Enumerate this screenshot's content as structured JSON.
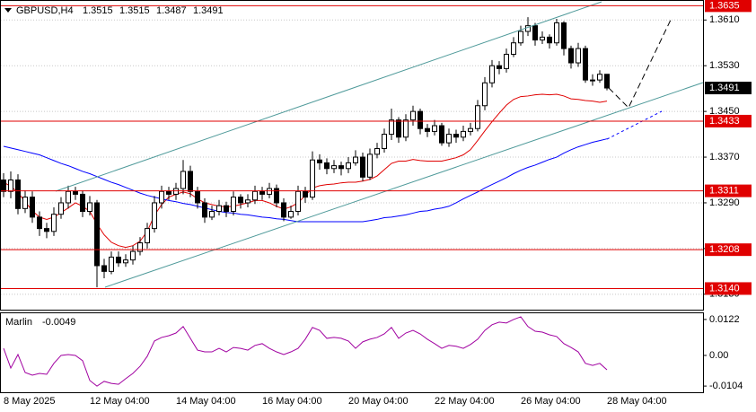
{
  "chart_data": [
    {
      "type": "candlestick",
      "symbol": "GBPUSD,H4",
      "header_ohlc": [
        1.3515,
        1.3515,
        1.3487,
        1.3491
      ],
      "categories": [
        "8 May 2025",
        null,
        null,
        null,
        null,
        null,
        null,
        null,
        null,
        null,
        null,
        null,
        "12 May 04:00",
        null,
        null,
        null,
        null,
        null,
        null,
        null,
        null,
        null,
        null,
        null,
        "14 May 04:00",
        null,
        null,
        null,
        null,
        null,
        null,
        null,
        null,
        null,
        null,
        null,
        "16 May 04:00",
        null,
        null,
        null,
        null,
        null,
        null,
        null,
        null,
        null,
        null,
        null,
        "20 May 04:00",
        null,
        null,
        null,
        null,
        null,
        null,
        null,
        null,
        null,
        null,
        null,
        "22 May 04:00",
        null,
        null,
        null,
        null,
        null,
        null,
        null,
        null,
        null,
        null,
        null,
        "26 May 04:00",
        null,
        null,
        null,
        null,
        null,
        null,
        null,
        null,
        null,
        null,
        null,
        "28 May 04:00"
      ],
      "open": [
        1.333,
        1.331,
        1.333,
        1.328,
        1.33,
        1.3265,
        1.3245,
        1.324,
        1.327,
        1.329,
        1.331,
        1.3305,
        1.3275,
        1.329,
        1.318,
        1.317,
        1.3195,
        1.3185,
        1.319,
        1.3205,
        1.322,
        1.3245,
        1.329,
        1.331,
        1.3305,
        1.3315,
        1.3345,
        1.331,
        1.329,
        1.3265,
        1.3275,
        1.3285,
        1.3275,
        1.33,
        1.329,
        1.3295,
        1.331,
        1.3305,
        1.3315,
        1.329,
        1.3265,
        1.3275,
        1.331,
        1.33,
        1.3365,
        1.336,
        1.335,
        1.3355,
        1.335,
        1.336,
        1.337,
        1.3335,
        1.3375,
        1.3385,
        1.341,
        1.3435,
        1.3405,
        1.3435,
        1.345,
        1.342,
        1.3415,
        1.3425,
        1.3395,
        1.341,
        1.3405,
        1.3415,
        1.342,
        1.346,
        1.35,
        1.353,
        1.3525,
        1.355,
        1.357,
        1.359,
        1.36,
        1.3575,
        1.358,
        1.357,
        1.3605,
        1.356,
        1.3535,
        1.356,
        1.3505,
        1.3505,
        1.3515
      ],
      "high": [
        1.3342,
        1.3345,
        1.334,
        1.3312,
        1.331,
        1.3275,
        1.3255,
        1.3282,
        1.33,
        1.332,
        1.3318,
        1.3312,
        1.3302,
        1.3295,
        1.3192,
        1.3205,
        1.3205,
        1.32,
        1.3215,
        1.323,
        1.3255,
        1.3302,
        1.332,
        1.3318,
        1.3325,
        1.3365,
        1.3355,
        1.3318,
        1.3298,
        1.3285,
        1.3295,
        1.3292,
        1.331,
        1.3305,
        1.3305,
        1.332,
        1.3318,
        1.3325,
        1.3322,
        1.3298,
        1.3285,
        1.332,
        1.3318,
        1.338,
        1.3375,
        1.3368,
        1.3365,
        1.3362,
        1.337,
        1.3382,
        1.3378,
        1.3385,
        1.3395,
        1.342,
        1.3455,
        1.344,
        1.3445,
        1.346,
        1.3455,
        1.3428,
        1.3435,
        1.343,
        1.342,
        1.3418,
        1.3425,
        1.343,
        1.347,
        1.351,
        1.354,
        1.3538,
        1.356,
        1.358,
        1.36,
        1.3615,
        1.3605,
        1.359,
        1.3585,
        1.3612,
        1.3608,
        1.3565,
        1.357,
        1.3565,
        1.3515,
        1.3522,
        1.3515
      ],
      "low": [
        1.33,
        1.3298,
        1.327,
        1.3272,
        1.3255,
        1.3232,
        1.3228,
        1.3232,
        1.3262,
        1.328,
        1.3295,
        1.3265,
        1.3268,
        1.3142,
        1.3158,
        1.3165,
        1.3178,
        1.3178,
        1.3182,
        1.3198,
        1.321,
        1.3238,
        1.328,
        1.3295,
        1.3295,
        1.3305,
        1.33,
        1.328,
        1.3255,
        1.326,
        1.3268,
        1.3265,
        1.3268,
        1.328,
        1.3282,
        1.3288,
        1.3295,
        1.3298,
        1.3282,
        1.3258,
        1.3262,
        1.3268,
        1.329,
        1.3295,
        1.3348,
        1.334,
        1.3342,
        1.3338,
        1.3342,
        1.3355,
        1.3328,
        1.333,
        1.3368,
        1.3378,
        1.34,
        1.3395,
        1.3398,
        1.3425,
        1.341,
        1.3405,
        1.3408,
        1.339,
        1.3388,
        1.3395,
        1.3398,
        1.3408,
        1.3415,
        1.3452,
        1.3492,
        1.3515,
        1.3518,
        1.3545,
        1.3565,
        1.3582,
        1.3565,
        1.3568,
        1.356,
        1.3565,
        1.3548,
        1.3525,
        1.3528,
        1.35,
        1.3495,
        1.35,
        1.3487
      ],
      "close": [
        1.331,
        1.333,
        1.328,
        1.33,
        1.3265,
        1.3245,
        1.324,
        1.327,
        1.329,
        1.331,
        1.3305,
        1.3275,
        1.329,
        1.318,
        1.317,
        1.3195,
        1.3185,
        1.319,
        1.3205,
        1.322,
        1.3245,
        1.329,
        1.331,
        1.3305,
        1.3315,
        1.3345,
        1.331,
        1.329,
        1.3265,
        1.3275,
        1.3285,
        1.3275,
        1.33,
        1.329,
        1.3295,
        1.331,
        1.3305,
        1.3315,
        1.329,
        1.3265,
        1.3275,
        1.331,
        1.33,
        1.3365,
        1.336,
        1.335,
        1.3355,
        1.335,
        1.336,
        1.337,
        1.3335,
        1.3375,
        1.3385,
        1.341,
        1.3435,
        1.3405,
        1.3435,
        1.345,
        1.342,
        1.3415,
        1.3425,
        1.3395,
        1.341,
        1.3405,
        1.3415,
        1.342,
        1.346,
        1.35,
        1.353,
        1.3525,
        1.355,
        1.357,
        1.359,
        1.36,
        1.3575,
        1.358,
        1.357,
        1.3605,
        1.356,
        1.3535,
        1.356,
        1.3505,
        1.3505,
        1.3515,
        1.3491
      ],
      "moving_averages": [
        {
          "color": "#e00000",
          "values": [
            1.3326,
            1.3319,
            1.3308,
            1.3292,
            1.3276,
            1.3265,
            1.3261,
            1.3265,
            1.3273,
            1.3281,
            1.329,
            1.3284,
            1.3275,
            1.3253,
            1.3234,
            1.3221,
            1.3215,
            1.3212,
            1.3215,
            1.3223,
            1.324,
            1.3268,
            1.3287,
            1.33,
            1.3305,
            1.3309,
            1.3306,
            1.3297,
            1.329,
            1.3287,
            1.3284,
            1.3283,
            1.3284,
            1.3287,
            1.329,
            1.3294,
            1.3294,
            1.329,
            1.3284,
            1.3279,
            1.3283,
            1.329,
            1.3303,
            1.3316,
            1.332,
            1.3322,
            1.3323,
            1.3325,
            1.3326,
            1.3326,
            1.3328,
            1.3331,
            1.3337,
            1.3348,
            1.3359,
            1.3363,
            1.3363,
            1.3366,
            1.3364,
            1.3363,
            1.3363,
            1.3363,
            1.3366,
            1.3369,
            1.3374,
            1.3383,
            1.3399,
            1.3416,
            1.3432,
            1.3447,
            1.3461,
            1.3471,
            1.3476,
            1.3477,
            1.3479,
            1.348,
            1.3479,
            1.348,
            1.3477,
            1.3472,
            1.3471,
            1.3469,
            1.3468,
            1.3466,
            1.3468
          ]
        },
        {
          "color": "#0000ff",
          "values": [
            1.3389,
            1.3386,
            1.3383,
            1.338,
            1.3377,
            1.3374,
            1.3369,
            1.3364,
            1.3359,
            1.3355,
            1.335,
            1.3345,
            1.3341,
            1.3336,
            1.3331,
            1.3326,
            1.3322,
            1.3317,
            1.3312,
            1.3307,
            1.3303,
            1.33,
            1.3297,
            1.3294,
            1.3292,
            1.3289,
            1.3287,
            1.3284,
            1.3281,
            1.3278,
            1.3275,
            1.3273,
            1.3272,
            1.327,
            1.3269,
            1.3267,
            1.3265,
            1.3264,
            1.3262,
            1.3261,
            1.3259,
            1.3257,
            1.3257,
            1.3257,
            1.3257,
            1.3257,
            1.3257,
            1.3257,
            1.3257,
            1.3257,
            1.3257,
            1.3259,
            1.3261,
            1.3264,
            1.3265,
            1.3267,
            1.3269,
            1.3272,
            1.3275,
            1.3276,
            1.3279,
            1.3281,
            1.3284,
            1.329,
            1.3297,
            1.3303,
            1.3309,
            1.3316,
            1.3322,
            1.3328,
            1.3334,
            1.3341,
            1.3347,
            1.3352,
            1.3356,
            1.3361,
            1.3366,
            1.337,
            1.3377,
            1.3383,
            1.3388,
            1.3392,
            1.3396,
            1.3399,
            1.3402
          ]
        }
      ],
      "ylim": [
        1.3103,
        1.3645
      ],
      "yticks": [
        {
          "value": 1.361,
          "label": "1.3610"
        },
        {
          "value": 1.353,
          "label": "1.3530"
        },
        {
          "value": 1.345,
          "label": "1.3450"
        },
        {
          "value": 1.337,
          "label": "1.3370"
        },
        {
          "value": 1.329,
          "label": "1.3290"
        },
        {
          "value": 1.321,
          "label": "1.3210"
        },
        {
          "value": 1.313,
          "label": "1.3130"
        }
      ],
      "levels": [
        1.3635,
        1.3433,
        1.3311,
        1.3208,
        {
          "value": 1.314,
          "label": "1.3140"
        }
      ],
      "level_color": "#e00000",
      "last_price": 1.3491,
      "grid": true
    },
    {
      "type": "line",
      "name": "Marlin",
      "color": "#a000a0",
      "values": [
        0.0024,
        -0.0043,
        0.0003,
        -0.0058,
        -0.0067,
        -0.0061,
        -0.0064,
        -0.0027,
        0.0,
        0.0003,
        0.0,
        -0.0018,
        -0.0085,
        -0.0104,
        -0.0088,
        -0.0095,
        -0.0098,
        -0.0079,
        -0.0061,
        -0.0037,
        -0.0003,
        0.0049,
        0.0061,
        0.0067,
        0.0076,
        0.0098,
        0.0058,
        0.0018,
        0.0012,
        0.0012,
        0.0024,
        0.0012,
        0.0027,
        0.0024,
        0.0018,
        0.0034,
        0.004,
        0.0024,
        0.0012,
        0.0003,
        0.0012,
        0.0024,
        0.0055,
        0.0095,
        0.0085,
        0.0058,
        0.0061,
        0.0058,
        0.0049,
        0.0024,
        0.0046,
        0.0055,
        0.0061,
        0.0073,
        0.0095,
        0.0058,
        0.0076,
        0.0085,
        0.0073,
        0.0055,
        0.004,
        0.0024,
        0.0034,
        0.0031,
        0.0024,
        0.0037,
        0.0055,
        0.0085,
        0.0104,
        0.0113,
        0.011,
        0.0122,
        0.0131,
        0.0098,
        0.0082,
        0.0079,
        0.007,
        0.0064,
        0.004,
        0.0027,
        0.0012,
        -0.0027,
        -0.0034,
        -0.0027,
        -0.0049
      ],
      "ylim": [
        -0.0125,
        0.014
      ],
      "yticks": [
        0.0122,
        {
          "value": 0,
          "label": "0.00"
        },
        -0.0104
      ]
    }
  ]
}
